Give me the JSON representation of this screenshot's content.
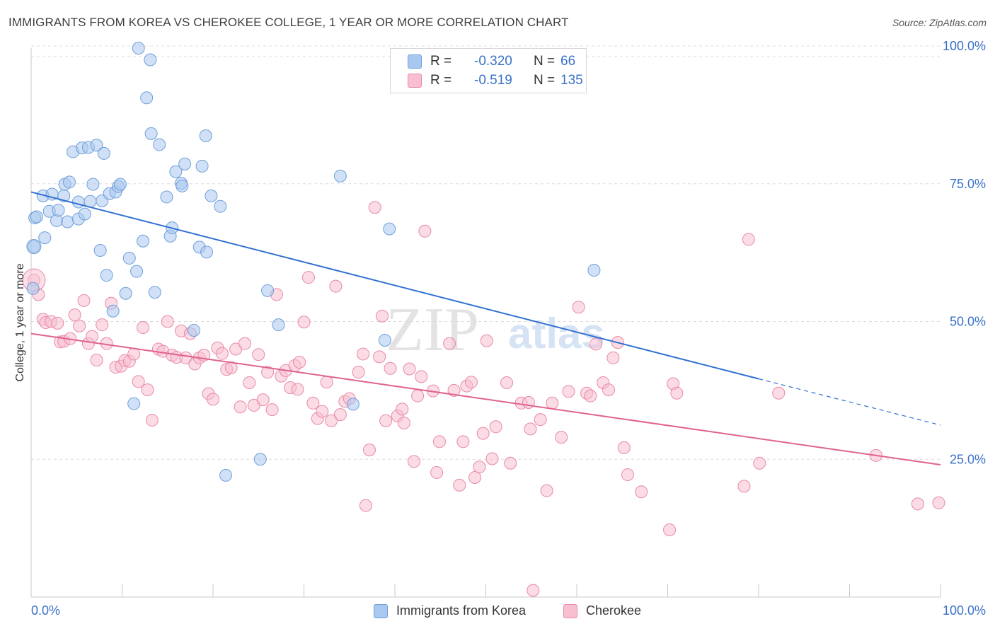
{
  "title": "IMMIGRANTS FROM KOREA VS CHEROKEE COLLEGE, 1 YEAR OR MORE CORRELATION CHART",
  "source": "Source: ZipAtlas.com",
  "watermark": {
    "zip": "ZIP",
    "atlas": "atlas"
  },
  "colors": {
    "blue_fill": "#a9c8f0",
    "blue_stroke": "#6f9fd8",
    "blue_line": "#2f6fd0",
    "pink_fill": "#f7bfd0",
    "pink_stroke": "#e889a7",
    "pink_line": "#e0628e",
    "tick_label": "#3b72c8",
    "grid": "#dcdcdc"
  },
  "legend": {
    "rows": [
      {
        "r_label": "R =",
        "r_value": "-0.320",
        "n_label": "N =",
        "n_value": "66"
      },
      {
        "r_label": "R =",
        "r_value": "-0.519",
        "n_label": "N =",
        "n_value": "135"
      }
    ]
  },
  "bottom_legend": [
    {
      "label": "Immigrants from Korea"
    },
    {
      "label": "Cherokee"
    }
  ],
  "chart_data": {
    "type": "scatter",
    "title": "IMMIGRANTS FROM KOREA VS CHEROKEE COLLEGE, 1 YEAR OR MORE CORRELATION CHART",
    "xlabel": "",
    "ylabel": "College, 1 year or more",
    "xlim": [
      0,
      100
    ],
    "ylim": [
      0,
      100
    ],
    "x_tick_labels": [
      "0.0%",
      "100.0%"
    ],
    "y_ticks": [
      25,
      50,
      75,
      100
    ],
    "y_tick_labels": [
      "25.0%",
      "50.0%",
      "75.0%",
      "100.0%"
    ],
    "grid": true,
    "legend_position": "top-center",
    "series": [
      {
        "name": "Immigrants from Korea",
        "color": "#a9c8f0",
        "trend": {
          "x": [
            0,
            80
          ],
          "y": [
            73.5,
            39.6
          ],
          "dashed_to": [
            100,
            31.2
          ]
        },
        "points": [
          [
            0.2,
            56.0
          ],
          [
            0.3,
            63.6
          ],
          [
            0.4,
            68.8
          ],
          [
            0.6,
            69.0
          ],
          [
            1.3,
            72.8
          ],
          [
            1.5,
            65.2
          ],
          [
            2.0,
            70.0
          ],
          [
            2.3,
            73.1
          ],
          [
            2.8,
            68.3
          ],
          [
            3.0,
            70.2
          ],
          [
            3.6,
            72.8
          ],
          [
            3.7,
            74.9
          ],
          [
            4.0,
            68.1
          ],
          [
            4.2,
            75.3
          ],
          [
            4.6,
            80.8
          ],
          [
            5.2,
            71.7
          ],
          [
            5.2,
            68.6
          ],
          [
            5.6,
            81.5
          ],
          [
            5.9,
            69.5
          ],
          [
            6.3,
            81.6
          ],
          [
            6.5,
            71.8
          ],
          [
            6.8,
            74.9
          ],
          [
            7.2,
            82.0
          ],
          [
            7.6,
            62.9
          ],
          [
            7.8,
            71.9
          ],
          [
            8.0,
            80.5
          ],
          [
            8.3,
            58.4
          ],
          [
            8.6,
            73.2
          ],
          [
            9.0,
            51.9
          ],
          [
            9.3,
            73.5
          ],
          [
            9.6,
            74.5
          ],
          [
            9.8,
            74.9
          ],
          [
            10.4,
            55.1
          ],
          [
            10.8,
            61.5
          ],
          [
            11.3,
            35.1
          ],
          [
            11.6,
            59.1
          ],
          [
            11.8,
            99.6
          ],
          [
            12.3,
            64.6
          ],
          [
            12.7,
            90.6
          ],
          [
            13.1,
            97.5
          ],
          [
            13.2,
            84.1
          ],
          [
            13.6,
            55.3
          ],
          [
            14.1,
            82.1
          ],
          [
            14.9,
            72.6
          ],
          [
            15.3,
            65.5
          ],
          [
            15.5,
            67.0
          ],
          [
            15.9,
            77.2
          ],
          [
            16.5,
            75.1
          ],
          [
            16.6,
            74.6
          ],
          [
            16.9,
            78.6
          ],
          [
            17.9,
            48.4
          ],
          [
            18.5,
            63.5
          ],
          [
            18.8,
            78.2
          ],
          [
            19.2,
            83.7
          ],
          [
            19.3,
            62.6
          ],
          [
            19.8,
            72.8
          ],
          [
            20.8,
            70.9
          ],
          [
            25.2,
            25.0
          ],
          [
            26.0,
            55.6
          ],
          [
            27.2,
            49.4
          ],
          [
            34.0,
            76.4
          ],
          [
            35.4,
            35.0
          ],
          [
            38.9,
            46.6
          ],
          [
            39.4,
            66.8
          ],
          [
            61.9,
            59.3
          ],
          [
            21.4,
            22.1
          ]
        ]
      },
      {
        "name": "Cherokee",
        "color": "#f7bfd0",
        "trend": {
          "x": [
            0,
            100
          ],
          "y": [
            47.8,
            24.0
          ]
        },
        "points": [
          [
            0.3,
            57.5
          ],
          [
            0.8,
            54.9
          ],
          [
            1.3,
            50.4
          ],
          [
            1.6,
            49.8
          ],
          [
            2.2,
            50.0
          ],
          [
            2.9,
            49.7
          ],
          [
            3.2,
            46.3
          ],
          [
            3.6,
            46.4
          ],
          [
            4.3,
            46.9
          ],
          [
            4.8,
            51.2
          ],
          [
            5.3,
            49.2
          ],
          [
            5.8,
            53.8
          ],
          [
            6.3,
            46.0
          ],
          [
            6.7,
            47.3
          ],
          [
            7.2,
            43.0
          ],
          [
            7.8,
            49.4
          ],
          [
            8.3,
            46.0
          ],
          [
            8.8,
            53.3
          ],
          [
            9.3,
            41.7
          ],
          [
            9.9,
            41.9
          ],
          [
            10.3,
            42.9
          ],
          [
            10.8,
            42.8
          ],
          [
            11.3,
            44.1
          ],
          [
            11.8,
            39.1
          ],
          [
            12.3,
            48.9
          ],
          [
            12.8,
            37.6
          ],
          [
            13.3,
            32.1
          ],
          [
            14.0,
            45.0
          ],
          [
            14.5,
            44.6
          ],
          [
            15.0,
            50.0
          ],
          [
            15.5,
            43.9
          ],
          [
            16.0,
            43.5
          ],
          [
            16.5,
            48.3
          ],
          [
            17.0,
            43.4
          ],
          [
            17.5,
            47.8
          ],
          [
            18.0,
            42.3
          ],
          [
            18.5,
            43.4
          ],
          [
            19.0,
            43.9
          ],
          [
            19.5,
            36.9
          ],
          [
            20.0,
            35.9
          ],
          [
            20.5,
            45.2
          ],
          [
            21.0,
            44.2
          ],
          [
            21.5,
            41.3
          ],
          [
            22.0,
            41.6
          ],
          [
            22.5,
            45.0
          ],
          [
            23.0,
            34.5
          ],
          [
            23.5,
            46.0
          ],
          [
            24.0,
            38.9
          ],
          [
            24.5,
            34.8
          ],
          [
            25.0,
            44.0
          ],
          [
            25.5,
            35.8
          ],
          [
            26.0,
            40.8
          ],
          [
            26.5,
            34.0
          ],
          [
            27.0,
            54.9
          ],
          [
            27.5,
            40.1
          ],
          [
            28.0,
            41.1
          ],
          [
            28.5,
            38.0
          ],
          [
            29.0,
            42.0
          ],
          [
            29.5,
            42.6
          ],
          [
            30.0,
            49.9
          ],
          [
            30.5,
            58.0
          ],
          [
            31.0,
            35.2
          ],
          [
            31.5,
            32.4
          ],
          [
            32.0,
            33.7
          ],
          [
            32.5,
            39.0
          ],
          [
            33.0,
            32.0
          ],
          [
            33.5,
            56.4
          ],
          [
            34.0,
            33.1
          ],
          [
            34.5,
            35.5
          ],
          [
            35.0,
            36.0
          ],
          [
            36.0,
            40.8
          ],
          [
            36.5,
            44.1
          ],
          [
            36.8,
            16.6
          ],
          [
            37.2,
            26.7
          ],
          [
            37.8,
            70.7
          ],
          [
            38.3,
            43.6
          ],
          [
            38.6,
            51.0
          ],
          [
            39.0,
            32.0
          ],
          [
            39.5,
            41.5
          ],
          [
            40.3,
            32.9
          ],
          [
            40.8,
            34.1
          ],
          [
            41.0,
            31.6
          ],
          [
            41.6,
            41.4
          ],
          [
            42.1,
            24.6
          ],
          [
            42.5,
            36.5
          ],
          [
            42.9,
            40.0
          ],
          [
            43.3,
            66.4
          ],
          [
            44.6,
            22.6
          ],
          [
            44.2,
            37.4
          ],
          [
            44.9,
            28.2
          ],
          [
            46.0,
            46.0
          ],
          [
            46.5,
            37.5
          ],
          [
            47.1,
            20.3
          ],
          [
            47.5,
            28.2
          ],
          [
            47.9,
            38.3
          ],
          [
            48.4,
            39.0
          ],
          [
            48.8,
            21.7
          ],
          [
            49.3,
            23.6
          ],
          [
            49.7,
            29.7
          ],
          [
            50.1,
            46.5
          ],
          [
            50.7,
            25.1
          ],
          [
            51.1,
            30.9
          ],
          [
            52.3,
            38.9
          ],
          [
            52.7,
            24.3
          ],
          [
            53.9,
            35.2
          ],
          [
            54.7,
            35.3
          ],
          [
            54.9,
            30.5
          ],
          [
            55.2,
            1.2
          ],
          [
            56.0,
            32.2
          ],
          [
            56.7,
            19.3
          ],
          [
            57.3,
            35.2
          ],
          [
            58.3,
            29.0
          ],
          [
            59.1,
            37.3
          ],
          [
            60.2,
            52.6
          ],
          [
            61.1,
            37.0
          ],
          [
            61.5,
            36.5
          ],
          [
            62.1,
            45.9
          ],
          [
            62.9,
            38.9
          ],
          [
            63.5,
            37.6
          ],
          [
            64.0,
            43.4
          ],
          [
            64.5,
            46.2
          ],
          [
            65.2,
            27.1
          ],
          [
            65.6,
            22.2
          ],
          [
            67.1,
            19.1
          ],
          [
            70.2,
            12.2
          ],
          [
            70.6,
            38.7
          ],
          [
            71.0,
            37.0
          ],
          [
            78.4,
            20.1
          ],
          [
            78.9,
            64.9
          ],
          [
            80.1,
            24.3
          ],
          [
            82.2,
            37.0
          ],
          [
            92.9,
            25.7
          ],
          [
            99.8,
            17.1
          ],
          [
            97.5,
            16.9
          ],
          [
            29.3,
            37.7
          ]
        ]
      }
    ]
  }
}
